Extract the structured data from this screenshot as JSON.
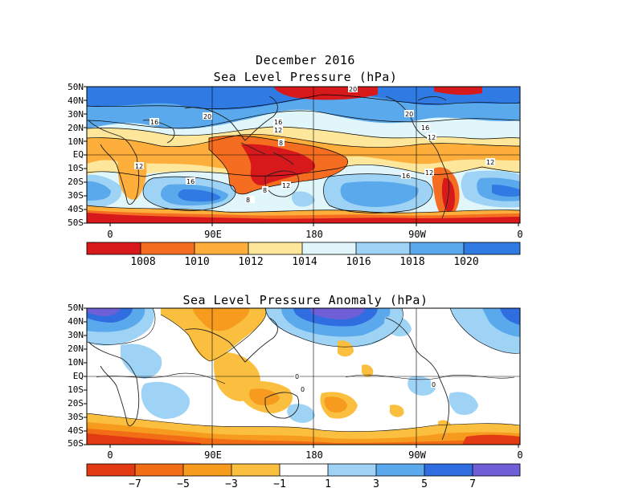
{
  "top_panel": {
    "title_line1": "December 2016",
    "title_line2": "Sea Level Pressure (hPa)",
    "colorbar_labels": [
      "1008",
      "1010",
      "1012",
      "1014",
      "1016",
      "1018",
      "1020"
    ],
    "colorbar_colors": [
      "#d7191c",
      "#f46d20",
      "#fdae3b",
      "#fee79a",
      "#e0f6fb",
      "#9ed3f5",
      "#5aa9ec",
      "#2f7be3"
    ],
    "contour_labels": [
      "8",
      "8",
      "8",
      "12",
      "12",
      "12",
      "12",
      "12",
      "12",
      "16",
      "16",
      "16",
      "16",
      "16",
      "20",
      "20",
      "20"
    ]
  },
  "bottom_panel": {
    "title": "Sea Level Pressure Anomaly (hPa)",
    "colorbar_labels": [
      "−7",
      "−5",
      "−3",
      "−1",
      "1",
      "3",
      "5",
      "7"
    ],
    "colorbar_colors": [
      "#e23a12",
      "#f26d15",
      "#f79b1f",
      "#fbbf3f",
      "#ffffff",
      "#9ed3f5",
      "#5aa9ec",
      "#2f6de0",
      "#6f5fd6"
    ],
    "contour_labels": [
      "0",
      "0",
      "0"
    ]
  },
  "axes": {
    "lat_labels": [
      "50N",
      "40N",
      "30N",
      "20N",
      "10N",
      "EQ",
      "10S",
      "20S",
      "30S",
      "40S",
      "50S"
    ],
    "lon_labels": [
      "0",
      "90E",
      "180",
      "90W",
      "0"
    ]
  }
}
